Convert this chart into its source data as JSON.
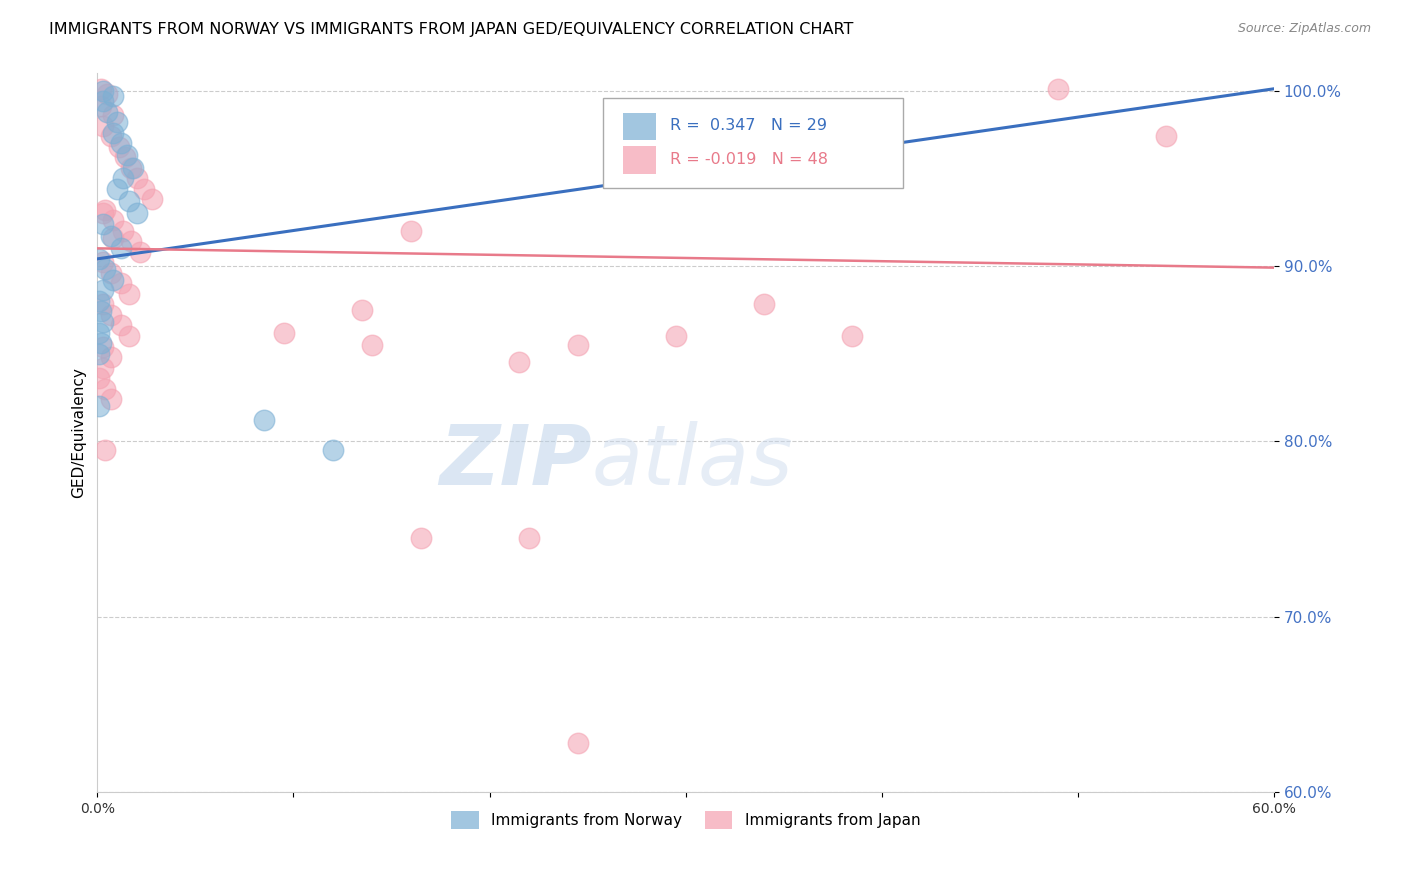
{
  "title": "IMMIGRANTS FROM NORWAY VS IMMIGRANTS FROM JAPAN GED/EQUIVALENCY CORRELATION CHART",
  "source": "Source: ZipAtlas.com",
  "ylabel": "GED/Equivalency",
  "xlim": [
    0.0,
    0.6
  ],
  "ylim": [
    0.6,
    1.01
  ],
  "xticks": [
    0.0,
    0.1,
    0.2,
    0.3,
    0.4,
    0.5,
    0.6
  ],
  "xticklabels": [
    "0.0%",
    "",
    "",
    "",
    "",
    "",
    "60.0%"
  ],
  "yticks": [
    0.6,
    0.7,
    0.8,
    0.9,
    1.0
  ],
  "yticklabels": [
    "60.0%",
    "70.0%",
    "80.0%",
    "90.0%",
    "100.0%"
  ],
  "norway_color": "#7bafd4",
  "japan_color": "#f4a0b0",
  "norway_line_color": "#3a6fbf",
  "japan_line_color": "#e87a8a",
  "R_norway": 0.347,
  "N_norway": 29,
  "R_japan": -0.019,
  "N_japan": 48,
  "watermark_zip": "ZIP",
  "watermark_atlas": "atlas",
  "norway_x": [
    0.003,
    0.008,
    0.003,
    0.005,
    0.01,
    0.008,
    0.012,
    0.015,
    0.018,
    0.013,
    0.01,
    0.016,
    0.02,
    0.003,
    0.007,
    0.012,
    0.001,
    0.004,
    0.008,
    0.003,
    0.001,
    0.002,
    0.003,
    0.001,
    0.002,
    0.001,
    0.001,
    0.085,
    0.12
  ],
  "norway_y": [
    1.0,
    0.997,
    0.994,
    0.988,
    0.982,
    0.976,
    0.97,
    0.963,
    0.956,
    0.95,
    0.944,
    0.937,
    0.93,
    0.924,
    0.917,
    0.91,
    0.904,
    0.898,
    0.892,
    0.886,
    0.88,
    0.874,
    0.868,
    0.862,
    0.856,
    0.85,
    0.82,
    0.812,
    0.795
  ],
  "japan_x": [
    0.002,
    0.005,
    0.002,
    0.008,
    0.003,
    0.007,
    0.011,
    0.014,
    0.017,
    0.02,
    0.024,
    0.028,
    0.004,
    0.008,
    0.013,
    0.017,
    0.022,
    0.003,
    0.007,
    0.012,
    0.016,
    0.003,
    0.007,
    0.012,
    0.016,
    0.003,
    0.007,
    0.003,
    0.001,
    0.004,
    0.007,
    0.003,
    0.008,
    0.004,
    0.095,
    0.14,
    0.135,
    0.16,
    0.215,
    0.245,
    0.295,
    0.34,
    0.385,
    0.49,
    0.545,
    0.165,
    0.22,
    0.245
  ],
  "japan_y": [
    1.001,
    0.998,
    0.991,
    0.986,
    0.98,
    0.974,
    0.968,
    0.962,
    0.956,
    0.95,
    0.944,
    0.938,
    0.932,
    0.926,
    0.92,
    0.914,
    0.908,
    0.902,
    0.896,
    0.89,
    0.884,
    0.878,
    0.872,
    0.866,
    0.86,
    0.854,
    0.848,
    0.842,
    0.836,
    0.83,
    0.824,
    0.93,
    0.916,
    0.795,
    0.862,
    0.855,
    0.875,
    0.92,
    0.845,
    0.855,
    0.86,
    0.878,
    0.86,
    1.001,
    0.974,
    0.745,
    0.745,
    0.628
  ],
  "norway_line_x": [
    0.0,
    0.6
  ],
  "norway_line_y": [
    0.904,
    1.001
  ],
  "japan_line_x": [
    0.0,
    0.6
  ],
  "japan_line_y": [
    0.91,
    0.899
  ]
}
